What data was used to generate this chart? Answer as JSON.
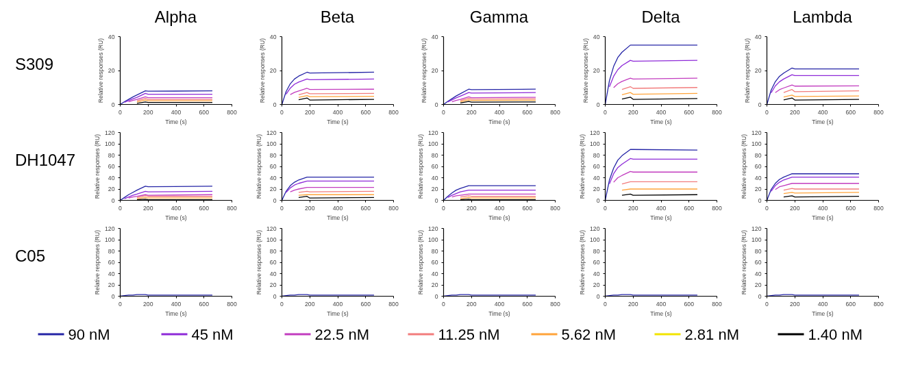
{
  "chart_data": [
    {
      "type": "line",
      "title": "Alpha",
      "annotations": [
        "S309"
      ],
      "xlabel": "Time (s)",
      "ylabel": "Relative responses (RU)",
      "x": [
        0,
        30,
        60,
        90,
        120,
        180,
        200,
        660
      ],
      "xlim": [
        0,
        800
      ],
      "xticks": [
        0,
        200,
        400,
        600,
        800
      ],
      "ylim": [
        0,
        40
      ],
      "yticks": [
        0,
        20,
        40
      ],
      "series": [
        {
          "color": "#2424a6",
          "values": [
            0,
            1.6,
            3,
            4.4,
            5.6,
            8,
            7.8,
            8
          ]
        },
        {
          "color": "#8e2ad8",
          "values": [
            null,
            1.2,
            2.3,
            3.3,
            4.2,
            6.5,
            6,
            6
          ]
        },
        {
          "color": "#c23cbf",
          "values": [
            null,
            null,
            1.6,
            2.4,
            3,
            4.5,
            4,
            4
          ]
        },
        {
          "color": "#f27c7c",
          "values": [
            null,
            null,
            null,
            null,
            2.2,
            3.5,
            3,
            3
          ]
        },
        {
          "color": "#ffa43a",
          "values": [
            null,
            null,
            null,
            null,
            1.5,
            2.6,
            2.2,
            2.2
          ]
        },
        {
          "color": "#000000",
          "values": [
            null,
            null,
            null,
            null,
            0.7,
            1.5,
            1.2,
            1.2
          ]
        }
      ]
    },
    {
      "type": "line",
      "title": "Beta",
      "xlabel": "Time (s)",
      "ylabel": "Relative responses (RU)",
      "x": [
        0,
        30,
        60,
        90,
        120,
        180,
        200,
        660
      ],
      "xlim": [
        0,
        800
      ],
      "xticks": [
        0,
        200,
        400,
        600,
        800
      ],
      "ylim": [
        0,
        40
      ],
      "yticks": [
        0,
        20,
        40
      ],
      "series": [
        {
          "color": "#2424a6",
          "values": [
            0,
            7.6,
            12.2,
            15,
            16.7,
            19,
            18.5,
            19
          ]
        },
        {
          "color": "#8e2ad8",
          "values": [
            null,
            6,
            9.6,
            11.9,
            13.2,
            15,
            14.6,
            15
          ]
        },
        {
          "color": "#c23cbf",
          "values": [
            null,
            null,
            5.8,
            7.1,
            7.9,
            9.5,
            8.8,
            9
          ]
        },
        {
          "color": "#f27c7c",
          "values": [
            null,
            null,
            null,
            null,
            5.7,
            7,
            6.3,
            6.5
          ]
        },
        {
          "color": "#ffa43a",
          "values": [
            null,
            null,
            null,
            null,
            4.2,
            5.2,
            4.6,
            4.8
          ]
        },
        {
          "color": "#000000",
          "values": [
            null,
            null,
            null,
            null,
            2.8,
            3.8,
            2.6,
            3
          ]
        }
      ]
    },
    {
      "type": "line",
      "title": "Gamma",
      "xlabel": "Time (s)",
      "ylabel": "Relative responses (RU)",
      "x": [
        0,
        30,
        60,
        90,
        120,
        180,
        200,
        660
      ],
      "xlim": [
        0,
        800
      ],
      "xticks": [
        0,
        200,
        400,
        600,
        800
      ],
      "ylim": [
        0,
        40
      ],
      "yticks": [
        0,
        20,
        40
      ],
      "series": [
        {
          "color": "#2424a6",
          "values": [
            0,
            1.8,
            3.4,
            5,
            6.3,
            9,
            8.7,
            9
          ]
        },
        {
          "color": "#8e2ad8",
          "values": [
            null,
            1.4,
            2.7,
            3.9,
            4.9,
            7,
            6.7,
            7
          ]
        },
        {
          "color": "#c23cbf",
          "values": [
            null,
            null,
            1.6,
            2.4,
            3,
            4.5,
            4,
            4.2
          ]
        },
        {
          "color": "#f27c7c",
          "values": [
            null,
            null,
            null,
            null,
            2.3,
            3.6,
            3.2,
            3.3
          ]
        },
        {
          "color": "#ffa43a",
          "values": [
            null,
            null,
            null,
            null,
            1.6,
            2.7,
            2.4,
            2.5
          ]
        },
        {
          "color": "#000000",
          "values": [
            null,
            null,
            null,
            null,
            0.9,
            1.8,
            1.4,
            1.5
          ]
        }
      ]
    },
    {
      "type": "line",
      "title": "Delta",
      "xlabel": "Time (s)",
      "ylabel": "Relative responses (RU)",
      "x": [
        0,
        30,
        60,
        90,
        120,
        180,
        200,
        660
      ],
      "xlim": [
        0,
        800
      ],
      "xticks": [
        0,
        200,
        400,
        600,
        800
      ],
      "ylim": [
        0,
        40
      ],
      "yticks": [
        0,
        20,
        40
      ],
      "series": [
        {
          "color": "#2424a6",
          "values": [
            0,
            14,
            22.4,
            27.7,
            30.8,
            35,
            35,
            35
          ]
        },
        {
          "color": "#8e2ad8",
          "values": [
            null,
            10.4,
            16.6,
            20.5,
            22.9,
            26,
            25.5,
            26
          ]
        },
        {
          "color": "#c23cbf",
          "values": [
            null,
            null,
            9.9,
            12.2,
            13.6,
            15.5,
            15,
            15.5
          ]
        },
        {
          "color": "#f27c7c",
          "values": [
            null,
            null,
            null,
            null,
            8.8,
            10.5,
            9.5,
            10
          ]
        },
        {
          "color": "#ffa43a",
          "values": [
            null,
            null,
            null,
            null,
            5.7,
            7,
            6,
            6.5
          ]
        },
        {
          "color": "#000000",
          "values": [
            null,
            null,
            null,
            null,
            3.2,
            4.3,
            3,
            3.5
          ]
        }
      ]
    },
    {
      "type": "line",
      "title": "Lambda",
      "xlabel": "Time (s)",
      "ylabel": "Relative responses (RU)",
      "x": [
        0,
        30,
        60,
        90,
        120,
        180,
        200,
        660
      ],
      "xlim": [
        0,
        800
      ],
      "xticks": [
        0,
        200,
        400,
        600,
        800
      ],
      "ylim": [
        0,
        40
      ],
      "yticks": [
        0,
        20,
        40
      ],
      "series": [
        {
          "color": "#2424a6",
          "values": [
            0,
            8.4,
            13.4,
            16.6,
            18.5,
            21.5,
            21,
            21
          ]
        },
        {
          "color": "#8e2ad8",
          "values": [
            null,
            6.8,
            10.9,
            13.4,
            15,
            17.5,
            17,
            17
          ]
        },
        {
          "color": "#c23cbf",
          "values": [
            null,
            null,
            7,
            8.7,
            9.7,
            11.5,
            10.8,
            11
          ]
        },
        {
          "color": "#f27c7c",
          "values": [
            null,
            null,
            null,
            null,
            7,
            8.8,
            7.5,
            8
          ]
        },
        {
          "color": "#ffa43a",
          "values": [
            null,
            null,
            null,
            null,
            4.4,
            5.5,
            4.7,
            5
          ]
        },
        {
          "color": "#000000",
          "values": [
            null,
            null,
            null,
            null,
            2.7,
            3.8,
            2.6,
            3
          ]
        }
      ]
    },
    {
      "type": "line",
      "annotations": [
        "DH1047"
      ],
      "xlabel": "Time (s)",
      "ylabel": "Relative responses (RU)",
      "x": [
        0,
        30,
        60,
        90,
        120,
        180,
        200,
        660
      ],
      "xlim": [
        0,
        800
      ],
      "xticks": [
        0,
        200,
        400,
        600,
        800
      ],
      "ylim": [
        0,
        120
      ],
      "yticks": [
        0,
        20,
        40,
        60,
        80,
        100,
        120
      ],
      "series": [
        {
          "color": "#2424a6",
          "values": [
            0,
            5,
            10,
            14,
            18,
            25,
            24,
            25
          ]
        },
        {
          "color": "#8e2ad8",
          "values": [
            null,
            3,
            6,
            9,
            11,
            16,
            15,
            16
          ]
        },
        {
          "color": "#c23cbf",
          "values": [
            null,
            null,
            4,
            6,
            7,
            10,
            9,
            10
          ]
        },
        {
          "color": "#f27c7c",
          "values": [
            null,
            null,
            null,
            null,
            5,
            8,
            7,
            7
          ]
        },
        {
          "color": "#ffa43a",
          "values": [
            null,
            null,
            null,
            null,
            3,
            5,
            4,
            4
          ]
        },
        {
          "color": "#000000",
          "values": [
            null,
            null,
            null,
            null,
            1,
            2,
            1,
            1
          ]
        }
      ]
    },
    {
      "type": "line",
      "xlabel": "Time (s)",
      "ylabel": "Relative responses (RU)",
      "x": [
        0,
        30,
        60,
        90,
        120,
        180,
        200,
        660
      ],
      "xlim": [
        0,
        800
      ],
      "xticks": [
        0,
        200,
        400,
        600,
        800
      ],
      "ylim": [
        0,
        120
      ],
      "yticks": [
        0,
        20,
        40,
        60,
        80,
        100,
        120
      ],
      "series": [
        {
          "color": "#2424a6",
          "values": [
            0,
            16,
            26,
            32,
            36,
            41,
            41,
            41
          ]
        },
        {
          "color": "#8e2ad8",
          "values": [
            null,
            14,
            22,
            27,
            30,
            34,
            34,
            34
          ]
        },
        {
          "color": "#c23cbf",
          "values": [
            null,
            null,
            15,
            18,
            20,
            23,
            23,
            23
          ]
        },
        {
          "color": "#f27c7c",
          "values": [
            null,
            null,
            null,
            null,
            14,
            16,
            15,
            16
          ]
        },
        {
          "color": "#ffa43a",
          "values": [
            null,
            null,
            null,
            null,
            9,
            10,
            10,
            10
          ]
        },
        {
          "color": "#000000",
          "values": [
            null,
            null,
            null,
            null,
            5,
            7,
            4,
            5
          ]
        }
      ]
    },
    {
      "type": "line",
      "xlabel": "Time (s)",
      "ylabel": "Relative responses (RU)",
      "x": [
        0,
        30,
        60,
        90,
        120,
        180,
        200,
        660
      ],
      "xlim": [
        0,
        800
      ],
      "xticks": [
        0,
        200,
        400,
        600,
        800
      ],
      "ylim": [
        0,
        120
      ],
      "yticks": [
        0,
        20,
        40,
        60,
        80,
        100,
        120
      ],
      "series": [
        {
          "color": "#2424a6",
          "values": [
            0,
            7,
            13,
            18,
            21,
            26,
            26,
            26
          ]
        },
        {
          "color": "#8e2ad8",
          "values": [
            null,
            5,
            9,
            12,
            15,
            18,
            18,
            18
          ]
        },
        {
          "color": "#c23cbf",
          "values": [
            null,
            null,
            6,
            8,
            9,
            11,
            11,
            11
          ]
        },
        {
          "color": "#f27c7c",
          "values": [
            null,
            null,
            null,
            null,
            6,
            8,
            7,
            7
          ]
        },
        {
          "color": "#ffa43a",
          "values": [
            null,
            null,
            null,
            null,
            3,
            5,
            4,
            4
          ]
        },
        {
          "color": "#000000",
          "values": [
            null,
            null,
            null,
            null,
            1,
            2,
            1,
            1
          ]
        }
      ]
    },
    {
      "type": "line",
      "xlabel": "Time (s)",
      "ylabel": "Relative responses (RU)",
      "x": [
        0,
        30,
        60,
        90,
        120,
        180,
        200,
        660
      ],
      "xlim": [
        0,
        800
      ],
      "xticks": [
        0,
        200,
        400,
        600,
        800
      ],
      "ylim": [
        0,
        120
      ],
      "yticks": [
        0,
        20,
        40,
        60,
        80,
        100,
        120
      ],
      "series": [
        {
          "color": "#2424a6",
          "values": [
            0,
            36,
            57,
            71,
            79,
            90,
            90,
            89
          ]
        },
        {
          "color": "#8e2ad8",
          "values": [
            null,
            29,
            47,
            58,
            64,
            74,
            73,
            73
          ]
        },
        {
          "color": "#c23cbf",
          "values": [
            null,
            null,
            32,
            40,
            44,
            51,
            50,
            50
          ]
        },
        {
          "color": "#f27c7c",
          "values": [
            null,
            null,
            null,
            null,
            29,
            33,
            33,
            33
          ]
        },
        {
          "color": "#ffa43a",
          "values": [
            null,
            null,
            null,
            null,
            18,
            20,
            20,
            20
          ]
        },
        {
          "color": "#000000",
          "values": [
            null,
            null,
            null,
            null,
            9,
            11,
            9,
            10
          ]
        }
      ]
    },
    {
      "type": "line",
      "legend": "bottom",
      "xlabel": "Time (s)",
      "ylabel": "Relative responses (RU)",
      "x": [
        0,
        30,
        60,
        90,
        120,
        180,
        200,
        660
      ],
      "xlim": [
        0,
        800
      ],
      "xticks": [
        0,
        200,
        400,
        600,
        800
      ],
      "ylim": [
        0,
        120
      ],
      "yticks": [
        0,
        20,
        40,
        60,
        80,
        100,
        120
      ],
      "series": [
        {
          "name": "90 nM",
          "color": "#2424a6",
          "values": [
            0,
            19,
            30,
            37,
            41,
            47,
            47,
            47
          ]
        },
        {
          "name": "45 nM",
          "color": "#8e2ad8",
          "values": [
            null,
            16,
            26,
            32,
            36,
            41,
            41,
            41
          ]
        },
        {
          "name": "22.5 nM",
          "color": "#c23cbf",
          "values": [
            null,
            null,
            19,
            24,
            26,
            30,
            30,
            30
          ]
        },
        {
          "name": "11.25 nM",
          "color": "#f27c7c",
          "values": [
            null,
            null,
            null,
            null,
            18,
            21,
            20,
            20
          ]
        },
        {
          "name": "5.62 nM",
          "color": "#ffa43a",
          "values": [
            null,
            null,
            null,
            null,
            12,
            14,
            13,
            14
          ]
        },
        {
          "name": "2.81 nM",
          "color": "#f2e400",
          "values": [
            null,
            null,
            null,
            null,
            null,
            null,
            null,
            null
          ]
        },
        {
          "name": "1.40 nM",
          "color": "#000000",
          "values": [
            null,
            null,
            null,
            null,
            6,
            8,
            6,
            7
          ]
        }
      ]
    },
    {
      "type": "line",
      "annotations": [
        "C05"
      ],
      "xlabel": "Time (s)",
      "ylabel": "Relative responses (RU)",
      "x": [
        0,
        30,
        60,
        90,
        120,
        180,
        200,
        660
      ],
      "xlim": [
        0,
        800
      ],
      "xticks": [
        0,
        200,
        400,
        600,
        800
      ],
      "ylim": [
        0,
        120
      ],
      "yticks": [
        0,
        20,
        40,
        60,
        80,
        100,
        120
      ],
      "series": [
        {
          "color": "#2424a6",
          "values": [
            0,
            1,
            2,
            2,
            3,
            3,
            2,
            2
          ]
        }
      ]
    },
    {
      "type": "line",
      "xlabel": "Time (s)",
      "ylabel": "Relative responses (RU)",
      "x": [
        0,
        30,
        60,
        90,
        120,
        180,
        200,
        660
      ],
      "xlim": [
        0,
        800
      ],
      "xticks": [
        0,
        200,
        400,
        600,
        800
      ],
      "ylim": [
        0,
        120
      ],
      "yticks": [
        0,
        20,
        40,
        60,
        80,
        100,
        120
      ],
      "series": [
        {
          "color": "#2424a6",
          "values": [
            0,
            1,
            2,
            2,
            3,
            3,
            2,
            2
          ]
        }
      ]
    },
    {
      "type": "line",
      "xlabel": "Time (s)",
      "ylabel": "Relative responses (RU)",
      "x": [
        0,
        30,
        60,
        90,
        120,
        180,
        200,
        660
      ],
      "xlim": [
        0,
        800
      ],
      "xticks": [
        0,
        200,
        400,
        600,
        800
      ],
      "ylim": [
        0,
        120
      ],
      "yticks": [
        0,
        20,
        40,
        60,
        80,
        100,
        120
      ],
      "series": [
        {
          "color": "#2424a6",
          "values": [
            0,
            1,
            2,
            2,
            3,
            3,
            2,
            2
          ]
        }
      ]
    },
    {
      "type": "line",
      "xlabel": "Time (s)",
      "ylabel": "Relative responses (RU)",
      "x": [
        0,
        30,
        60,
        90,
        120,
        180,
        200,
        660
      ],
      "xlim": [
        0,
        800
      ],
      "xticks": [
        0,
        200,
        400,
        600,
        800
      ],
      "ylim": [
        0,
        120
      ],
      "yticks": [
        0,
        20,
        40,
        60,
        80,
        100,
        120
      ],
      "series": [
        {
          "color": "#2424a6",
          "values": [
            0,
            1,
            2,
            2,
            3,
            3,
            2,
            2
          ]
        }
      ]
    },
    {
      "type": "line",
      "xlabel": "Time (s)",
      "ylabel": "Relative responses (RU)",
      "x": [
        0,
        30,
        60,
        90,
        120,
        180,
        200,
        660
      ],
      "xlim": [
        0,
        800
      ],
      "xticks": [
        0,
        200,
        400,
        600,
        800
      ],
      "ylim": [
        0,
        120
      ],
      "yticks": [
        0,
        20,
        40,
        60,
        80,
        100,
        120
      ],
      "series": [
        {
          "color": "#2424a6",
          "values": [
            0,
            1,
            2,
            2,
            3,
            3,
            2,
            2
          ]
        }
      ]
    }
  ]
}
